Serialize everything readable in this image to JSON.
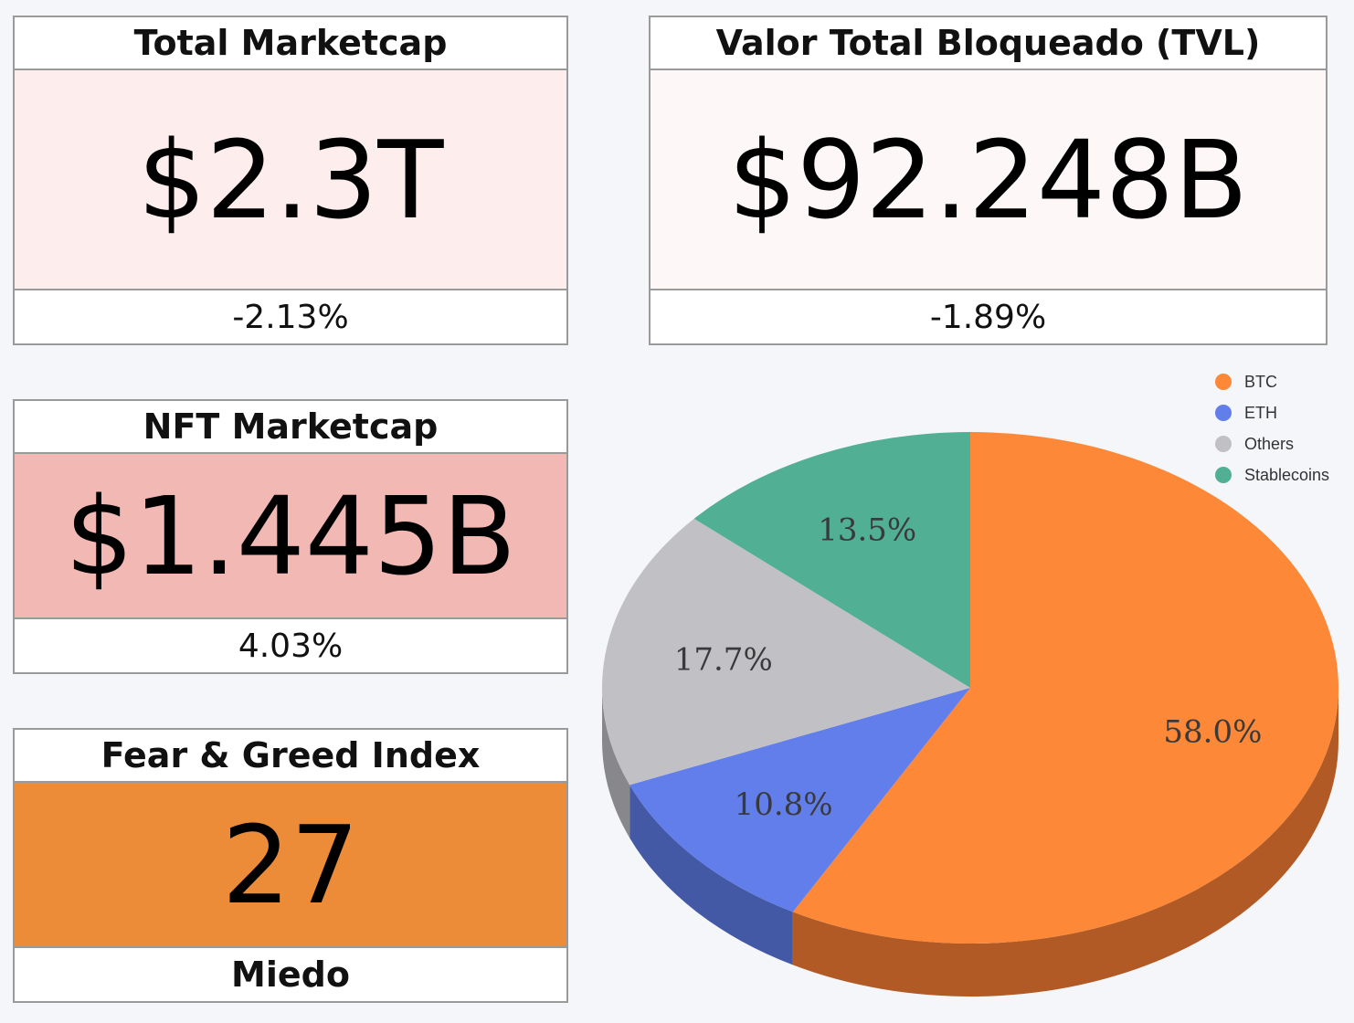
{
  "cards": {
    "marketcap": {
      "title": "Total Marketcap",
      "value": "$2.3T",
      "change": "-2.13%",
      "bg": "#fdeeed"
    },
    "tvl": {
      "title": "Valor Total Bloqueado (TVL)",
      "value": "$92.248B",
      "change": "-1.89%",
      "bg": "#fdf8f7"
    },
    "nft": {
      "title": "NFT Marketcap",
      "value": "$1.445B",
      "change": "4.03%",
      "bg": "#f1b8b4"
    },
    "fear_greed": {
      "title": "Fear & Greed Index",
      "value": "27",
      "label": "Miedo",
      "bg": "#ec8c39"
    }
  },
  "chart_data": {
    "type": "pie",
    "categories": [
      "BTC",
      "ETH",
      "Others",
      "Stablecoins"
    ],
    "values": [
      58.0,
      10.8,
      17.7,
      13.5
    ],
    "labels": [
      "58.0%",
      "10.8%",
      "17.7%",
      "13.5%"
    ],
    "colors": [
      "#fd8837",
      "#627eea",
      "#c1c0c5",
      "#51b094"
    ],
    "side_colors": [
      "#b15a25",
      "#4459a5",
      "#88878b",
      "#39806a"
    ],
    "legend_position": "top-right",
    "style": "3d"
  }
}
